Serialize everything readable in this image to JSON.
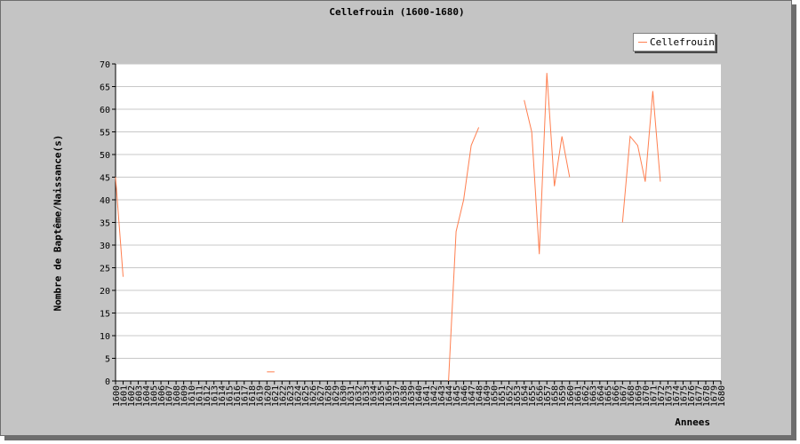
{
  "chart_data": {
    "type": "line",
    "title": "Cellefrouin (1600-1680)",
    "xlabel": "Annees",
    "ylabel": "Nombre de Baptême/Naissance(s)",
    "ylim": [
      0,
      70
    ],
    "yticks": [
      0,
      5,
      10,
      15,
      20,
      25,
      30,
      35,
      40,
      45,
      50,
      55,
      60,
      65,
      70
    ],
    "xlim": [
      1600,
      1680
    ],
    "xticks": [
      "1600",
      "1601",
      "1602",
      "1603",
      "1604",
      "1605",
      "1606",
      "1607",
      "1608",
      "1609",
      "1610",
      "1611",
      "1612",
      "1613",
      "1614",
      "1615",
      "1616",
      "1617",
      "1618",
      "1619",
      "1620",
      "1621",
      "1622",
      "1623",
      "1624",
      "1625",
      "1626",
      "1627",
      "1628",
      "1629",
      "1630",
      "1631",
      "1632",
      "1633",
      "1634",
      "1635",
      "1636",
      "1637",
      "1638",
      "1639",
      "1640",
      "1641",
      "1642",
      "1643",
      "1644",
      "1645",
      "1646",
      "1647",
      "1648",
      "1649",
      "1650",
      "1651",
      "1652",
      "1653",
      "1654",
      "1655",
      "1656",
      "1657",
      "1658",
      "1659",
      "1660",
      "1661",
      "1662",
      "1663",
      "1664",
      "1665",
      "1666",
      "1667",
      "1668",
      "1669",
      "1670",
      "1671",
      "1672",
      "1673",
      "1674",
      "1675",
      "1676",
      "1677",
      "1678",
      "1679",
      "1680"
    ],
    "legend_position": "top-right",
    "series": [
      {
        "name": "Cellefrouin",
        "color": "#ff7f50",
        "segments": [
          [
            [
              1600,
              45
            ],
            [
              1601,
              23
            ]
          ],
          [
            [
              1620,
              2
            ],
            [
              1621,
              2
            ]
          ],
          [
            [
              1644,
              0
            ],
            [
              1645,
              33
            ],
            [
              1646,
              40
            ],
            [
              1647,
              52
            ],
            [
              1648,
              56
            ]
          ],
          [
            [
              1654,
              62
            ],
            [
              1655,
              55
            ],
            [
              1656,
              28
            ],
            [
              1657,
              68
            ],
            [
              1658,
              43
            ],
            [
              1659,
              54
            ],
            [
              1660,
              45
            ]
          ],
          [
            [
              1667,
              35
            ],
            [
              1668,
              54
            ],
            [
              1669,
              52
            ],
            [
              1670,
              44
            ],
            [
              1671,
              64
            ],
            [
              1672,
              44
            ]
          ]
        ]
      }
    ]
  }
}
